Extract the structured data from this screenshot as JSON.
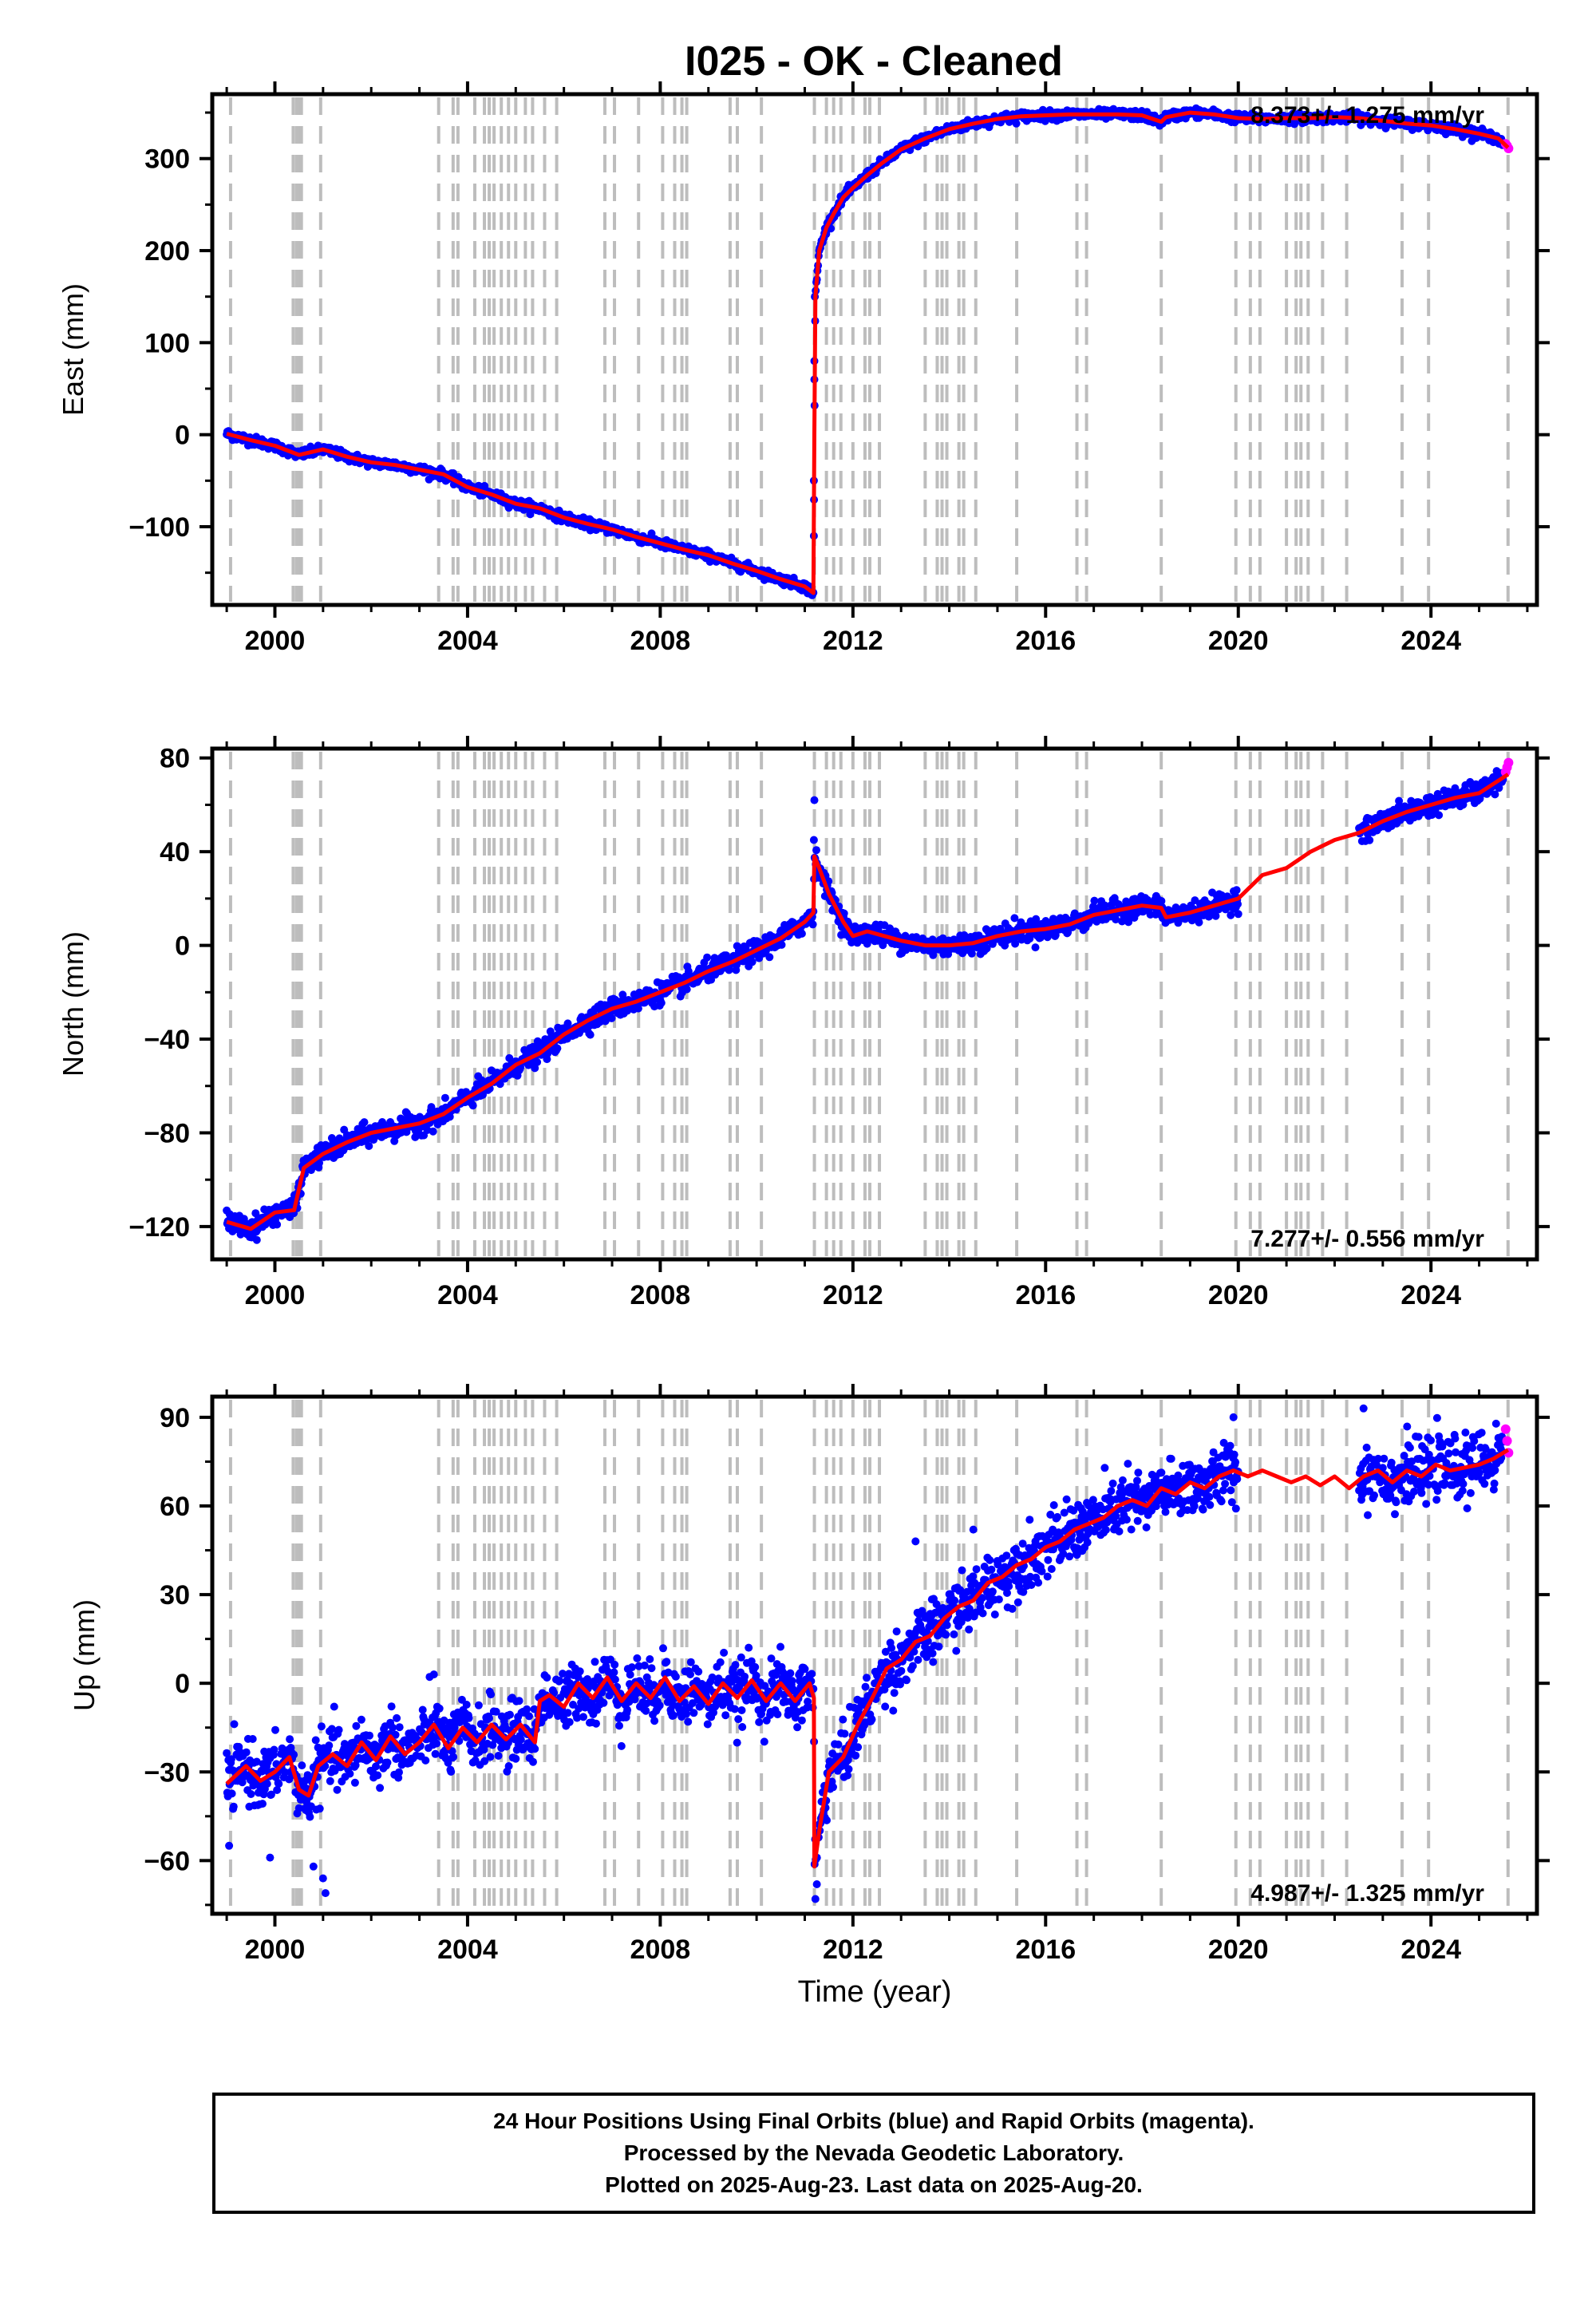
{
  "title": "I025  - OK - Cleaned",
  "footer": {
    "lines": [
      "24 Hour Positions Using Final Orbits (blue) and Rapid Orbits (magenta).",
      "Processed by the Nevada Geodetic Laboratory.",
      "Plotted on 2025-Aug-23. Last data on 2025-Aug-20."
    ]
  },
  "colors": {
    "final_orbits": "#0000ff",
    "rapid_orbits": "#ff00ff",
    "model": "#ff0000",
    "event_lines": "#bdbdbd"
  },
  "event_lines_years": [
    1999.08,
    2000.38,
    2000.45,
    2000.5,
    2000.55,
    2000.95,
    2003.4,
    2003.7,
    2003.8,
    2004.15,
    2004.35,
    2004.45,
    2004.55,
    2004.7,
    2004.85,
    2005.0,
    2005.2,
    2005.35,
    2005.6,
    2005.85,
    2006.85,
    2007.05,
    2007.55,
    2008.05,
    2008.3,
    2008.45,
    2008.55,
    2009.45,
    2009.6,
    2010.1,
    2011.2,
    2011.45,
    2011.6,
    2011.75,
    2012.0,
    2012.25,
    2012.35,
    2012.55,
    2013.5,
    2013.75,
    2013.85,
    2013.95,
    2014.2,
    2014.3,
    2014.55,
    2015.4,
    2016.65,
    2016.85,
    2018.4,
    2019.95,
    2020.25,
    2020.45,
    2021.0,
    2021.2,
    2021.3,
    2021.45,
    2021.75,
    2022.25,
    2023.4,
    2023.95,
    2025.6
  ],
  "chart_data": [
    {
      "type": "scatter",
      "name": "east",
      "ylabel": "East (mm)",
      "xlabel": "",
      "xlim": [
        1998.7,
        2026.2
      ],
      "ylim": [
        -185,
        370
      ],
      "xticks": [
        2000,
        2004,
        2008,
        2012,
        2016,
        2020,
        2024
      ],
      "yticks": [
        -100,
        0,
        100,
        200,
        300
      ],
      "annotation": "8.373+/- 1.275 mm/yr",
      "annotation_position": "top-right",
      "model": {
        "x": [
          1999.0,
          1999.5,
          2000.0,
          2000.5,
          2001.0,
          2001.5,
          2002.0,
          2002.5,
          2003.0,
          2003.5,
          2004.0,
          2004.5,
          2005.0,
          2005.5,
          2006.0,
          2006.5,
          2007.0,
          2007.5,
          2008.0,
          2008.5,
          2009.0,
          2009.5,
          2010.0,
          2010.5,
          2011.0,
          2011.18,
          2011.2,
          2011.22,
          2011.3,
          2011.45,
          2011.6,
          2011.8,
          2012.0,
          2012.3,
          2012.6,
          2013.0,
          2013.5,
          2014.0,
          2014.5,
          2015.0,
          2015.5,
          2016.0,
          2016.5,
          2017.0,
          2017.5,
          2018.0,
          2018.4,
          2018.5,
          2019.0,
          2019.5,
          2020.0,
          2020.5,
          2021.0,
          2021.5,
          2022.0,
          2022.5,
          2023.0,
          2023.5,
          2024.0,
          2024.5,
          2025.0,
          2025.4,
          2025.6
        ],
        "y": [
          1,
          -6,
          -12,
          -22,
          -16,
          -24,
          -30,
          -33,
          -38,
          -43,
          -57,
          -65,
          -75,
          -80,
          -90,
          -97,
          -103,
          -111,
          -118,
          -125,
          -131,
          -140,
          -148,
          -157,
          -165,
          -172,
          0,
          150,
          200,
          225,
          240,
          258,
          268,
          282,
          295,
          310,
          322,
          332,
          338,
          343,
          346,
          347,
          348,
          348,
          348,
          347,
          340,
          345,
          350,
          348,
          344,
          343,
          344,
          344,
          345,
          344,
          341,
          338,
          336,
          332,
          327,
          322,
          312
        ]
      },
      "rapid_points": {
        "x": [
          2025.55,
          2025.58,
          2025.61
        ],
        "y": [
          316,
          314,
          311
        ]
      }
    },
    {
      "type": "scatter",
      "name": "north",
      "ylabel": "North (mm)",
      "xlabel": "",
      "xlim": [
        1998.7,
        2026.2
      ],
      "ylim": [
        -134,
        84
      ],
      "xticks": [
        2000,
        2004,
        2008,
        2012,
        2016,
        2020,
        2024
      ],
      "yticks": [
        -120,
        -80,
        -40,
        0,
        40,
        80
      ],
      "annotation": "7.277+/- 0.556 mm/yr",
      "annotation_position": "bottom-right",
      "model": {
        "x": [
          1999.0,
          1999.5,
          2000.0,
          2000.4,
          2000.6,
          2001.0,
          2001.5,
          2002.0,
          2002.5,
          2003.0,
          2003.5,
          2004.0,
          2004.5,
          2005.0,
          2005.5,
          2006.0,
          2006.5,
          2007.0,
          2007.5,
          2008.0,
          2008.5,
          2009.0,
          2009.5,
          2010.0,
          2010.5,
          2011.0,
          2011.18,
          2011.2,
          2011.3,
          2011.5,
          2011.8,
          2012.0,
          2012.3,
          2013.0,
          2013.5,
          2014.0,
          2014.5,
          2015.0,
          2015.5,
          2016.0,
          2016.5,
          2017.0,
          2017.5,
          2018.0,
          2018.4,
          2018.5,
          2019.0,
          2019.5,
          2020.0,
          2020.5,
          2021.0,
          2021.5,
          2022.0,
          2022.5,
          2023.0,
          2023.5,
          2024.0,
          2024.5,
          2025.0,
          2025.6
        ],
        "y": [
          -118,
          -121,
          -114,
          -113,
          -95,
          -89,
          -84,
          -80,
          -78,
          -76,
          -72,
          -65,
          -59,
          -51,
          -46,
          -38,
          -32,
          -27,
          -24,
          -20,
          -16,
          -11,
          -7,
          -2,
          3,
          10,
          14,
          38,
          33,
          22,
          10,
          4,
          6,
          2,
          0,
          0,
          1,
          4,
          6,
          7,
          9,
          13,
          15,
          17,
          16,
          12,
          14,
          17,
          20,
          30,
          33,
          40,
          45,
          48,
          53,
          57,
          60,
          63,
          65,
          73
        ]
      },
      "rapid_points": {
        "x": [
          2025.55,
          2025.58,
          2025.61
        ],
        "y": [
          74,
          76,
          78
        ]
      }
    },
    {
      "type": "scatter",
      "name": "up",
      "ylabel": "Up (mm)",
      "xlabel": "Time (year)",
      "xlim": [
        1998.7,
        2026.2
      ],
      "ylim": [
        -78,
        97
      ],
      "xticks": [
        2000,
        2004,
        2008,
        2012,
        2016,
        2020,
        2024
      ],
      "yticks": [
        -60,
        -30,
        0,
        30,
        60,
        90
      ],
      "annotation": "4.987+/- 1.325 mm/yr",
      "annotation_position": "bottom-right",
      "model": {
        "x": [
          1999.0,
          1999.4,
          1999.7,
          2000.0,
          2000.3,
          2000.5,
          2000.7,
          2000.9,
          2001.2,
          2001.5,
          2001.8,
          2002.1,
          2002.4,
          2002.7,
          2003.0,
          2003.3,
          2003.6,
          2003.9,
          2004.2,
          2004.5,
          2004.8,
          2005.1,
          2005.4,
          2005.5,
          2005.7,
          2006.0,
          2006.3,
          2006.6,
          2006.9,
          2007.2,
          2007.5,
          2007.8,
          2008.1,
          2008.4,
          2008.7,
          2009.0,
          2009.3,
          2009.6,
          2009.9,
          2010.2,
          2010.5,
          2010.8,
          2011.1,
          2011.19,
          2011.2,
          2011.3,
          2011.5,
          2011.8,
          2012.1,
          2012.4,
          2012.7,
          2013.0,
          2013.3,
          2013.6,
          2013.9,
          2014.2,
          2014.5,
          2014.8,
          2015.1,
          2015.4,
          2015.7,
          2016.0,
          2016.3,
          2016.6,
          2016.9,
          2017.2,
          2017.5,
          2017.8,
          2018.1,
          2018.4,
          2018.7,
          2019.0,
          2019.3,
          2019.6,
          2019.9,
          2020.2,
          2020.5,
          2020.8,
          2021.1,
          2021.4,
          2021.7,
          2022.0,
          2022.3,
          2022.6,
          2022.9,
          2023.2,
          2023.5,
          2023.8,
          2024.1,
          2024.4,
          2024.7,
          2025.0,
          2025.3,
          2025.6
        ],
        "y": [
          -34,
          -28,
          -33,
          -30,
          -25,
          -36,
          -38,
          -28,
          -24,
          -28,
          -20,
          -26,
          -18,
          -24,
          -20,
          -14,
          -22,
          -15,
          -20,
          -14,
          -19,
          -14,
          -20,
          -6,
          -4,
          -8,
          0,
          -5,
          2,
          -6,
          0,
          -5,
          2,
          -6,
          -1,
          -7,
          0,
          -5,
          1,
          -6,
          0,
          -6,
          0,
          -5,
          -62,
          -50,
          -30,
          -25,
          -14,
          -5,
          5,
          8,
          14,
          16,
          22,
          26,
          28,
          34,
          36,
          40,
          42,
          46,
          48,
          52,
          54,
          56,
          60,
          62,
          60,
          66,
          64,
          68,
          66,
          70,
          72,
          70,
          72,
          70,
          68,
          70,
          67,
          70,
          66,
          70,
          72,
          68,
          72,
          70,
          74,
          72,
          73,
          74,
          76,
          79
        ]
      },
      "rapid_points": {
        "x": [
          2025.55,
          2025.58,
          2025.61
        ],
        "y": [
          86,
          82,
          78
        ]
      }
    }
  ]
}
